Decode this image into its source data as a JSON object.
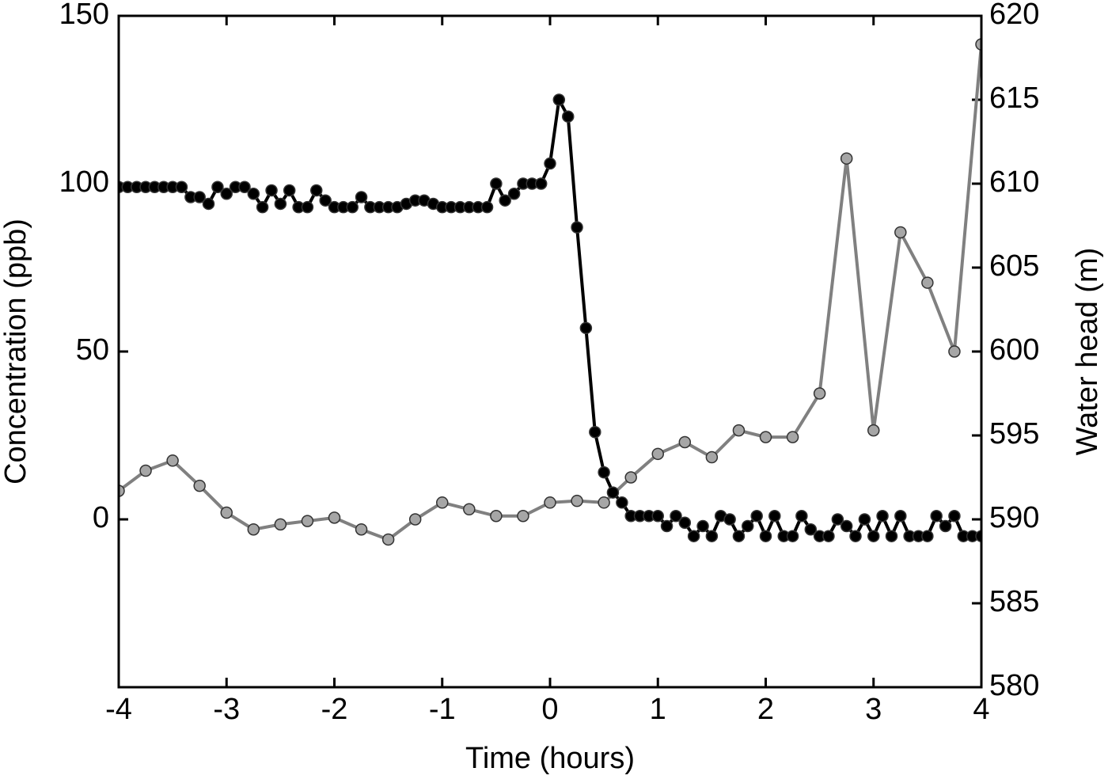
{
  "chart_data": {
    "type": "line",
    "xlabel": "Time (hours)",
    "ylabel": "Concentration (ppb)",
    "y2label": "Water head (m)",
    "xlim": [
      -4,
      4
    ],
    "xticks": [
      -4,
      -3,
      -2,
      -1,
      0,
      1,
      2,
      3,
      4
    ],
    "ylim": [
      -50,
      150
    ],
    "yticks": [
      0,
      50,
      100,
      150
    ],
    "y2lim": [
      580,
      620
    ],
    "y2ticks": [
      580,
      585,
      590,
      595,
      600,
      605,
      610,
      615,
      620
    ],
    "series": [
      {
        "color": "#000000",
        "marker_color": "#000000",
        "axis": "y",
        "x": [
          -4,
          -3.917,
          -3.833,
          -3.75,
          -3.667,
          -3.583,
          -3.5,
          -3.417,
          -3.333,
          -3.25,
          -3.167,
          -3.083,
          -3,
          -2.917,
          -2.833,
          -2.75,
          -2.667,
          -2.583,
          -2.5,
          -2.417,
          -2.333,
          -2.25,
          -2.167,
          -2.083,
          -2,
          -1.917,
          -1.833,
          -1.75,
          -1.667,
          -1.583,
          -1.5,
          -1.417,
          -1.333,
          -1.25,
          -1.167,
          -1.083,
          -1,
          -0.917,
          -0.833,
          -0.75,
          -0.667,
          -0.583,
          -0.5,
          -0.417,
          -0.333,
          -0.25,
          -0.167,
          -0.083,
          0,
          0.083,
          0.167,
          0.25,
          0.333,
          0.417,
          0.5,
          0.583,
          0.667,
          0.75,
          0.833,
          0.917,
          1,
          1.083,
          1.167,
          1.25,
          1.333,
          1.417,
          1.5,
          1.583,
          1.667,
          1.75,
          1.833,
          1.917,
          2,
          2.083,
          2.167,
          2.25,
          2.333,
          2.417,
          2.5,
          2.583,
          2.667,
          2.75,
          2.833,
          2.917,
          3,
          3.083,
          3.167,
          3.25,
          3.333,
          3.417,
          3.5,
          3.583,
          3.667,
          3.75,
          3.833,
          3.917,
          4
        ],
        "values": [
          99,
          99,
          99,
          99,
          99,
          99,
          99,
          99,
          96,
          96,
          94,
          99,
          97,
          99,
          99,
          97,
          93,
          98,
          94,
          98,
          93,
          93,
          98,
          95,
          93,
          93,
          93,
          96,
          93,
          93,
          93,
          93,
          94,
          95,
          95,
          94,
          93,
          93,
          93,
          93,
          93,
          93,
          100,
          95,
          97,
          100,
          100,
          100,
          106,
          125,
          120,
          87,
          57,
          26,
          14,
          8,
          5,
          1,
          1,
          1,
          1,
          -2,
          1,
          -1,
          -5,
          -2,
          -5,
          1,
          0,
          -5,
          -2,
          1,
          -5,
          1,
          -5,
          -5,
          1,
          -3,
          -5,
          -5,
          0,
          -2,
          -5,
          0,
          -5,
          1,
          -5,
          1,
          -5,
          -5,
          -5,
          1,
          -2,
          1,
          -5,
          -5,
          -5
        ]
      },
      {
        "color": "#808080",
        "marker_color": "#a6a6a6",
        "axis": "y2",
        "x": [
          -4,
          -3.75,
          -3.5,
          -3.25,
          -3,
          -2.75,
          -2.5,
          -2.25,
          -2,
          -1.75,
          -1.5,
          -1.25,
          -1,
          -0.75,
          -0.5,
          -0.25,
          0,
          0.25,
          0.5,
          0.75,
          1,
          1.25,
          1.5,
          1.75,
          2,
          2.25,
          2.5,
          2.75,
          3,
          3.25,
          3.5,
          3.75,
          4
        ],
        "values": [
          591.7,
          592.9,
          593.5,
          592.0,
          590.4,
          589.4,
          589.7,
          589.9,
          590.1,
          589.4,
          588.8,
          590.0,
          591.0,
          590.6,
          590.2,
          590.2,
          591.0,
          591.1,
          591.0,
          592.5,
          593.9,
          594.6,
          593.7,
          595.3,
          594.9,
          594.9,
          597.5,
          611.5,
          595.3,
          607.1,
          604.1,
          600.0,
          618.3
        ]
      }
    ]
  }
}
